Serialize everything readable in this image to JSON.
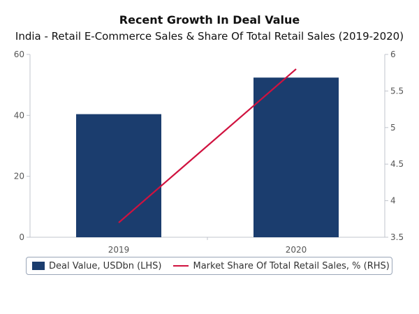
{
  "colors": {
    "bar": "#1b3d6e",
    "line": "#d0123f",
    "axis": "#c0c4cc",
    "text": "#555555"
  },
  "chart_data": {
    "type": "bar",
    "title": "Recent Growth In Deal Value",
    "subtitle": "India - Retail E-Commerce Sales & Share Of Total Retail Sales (2019-2020)",
    "categories": [
      "2019",
      "2020"
    ],
    "series": [
      {
        "name": "Deal Value, USDbn (LHS)",
        "type": "bar",
        "axis": "left",
        "values": [
          40.4,
          52.4
        ]
      },
      {
        "name": "Market Share Of Total Retail Sales, % (RHS)",
        "type": "line",
        "axis": "right",
        "values": [
          3.7,
          5.8
        ]
      }
    ],
    "y_left": {
      "min": 0,
      "max": 60,
      "ticks": [
        "0",
        "20",
        "40",
        "60"
      ]
    },
    "y_right": {
      "min": 3.5,
      "max": 6,
      "ticks": [
        "3.5",
        "4",
        "4.5",
        "5",
        "5.5",
        "6"
      ]
    },
    "legend_position": "bottom"
  }
}
